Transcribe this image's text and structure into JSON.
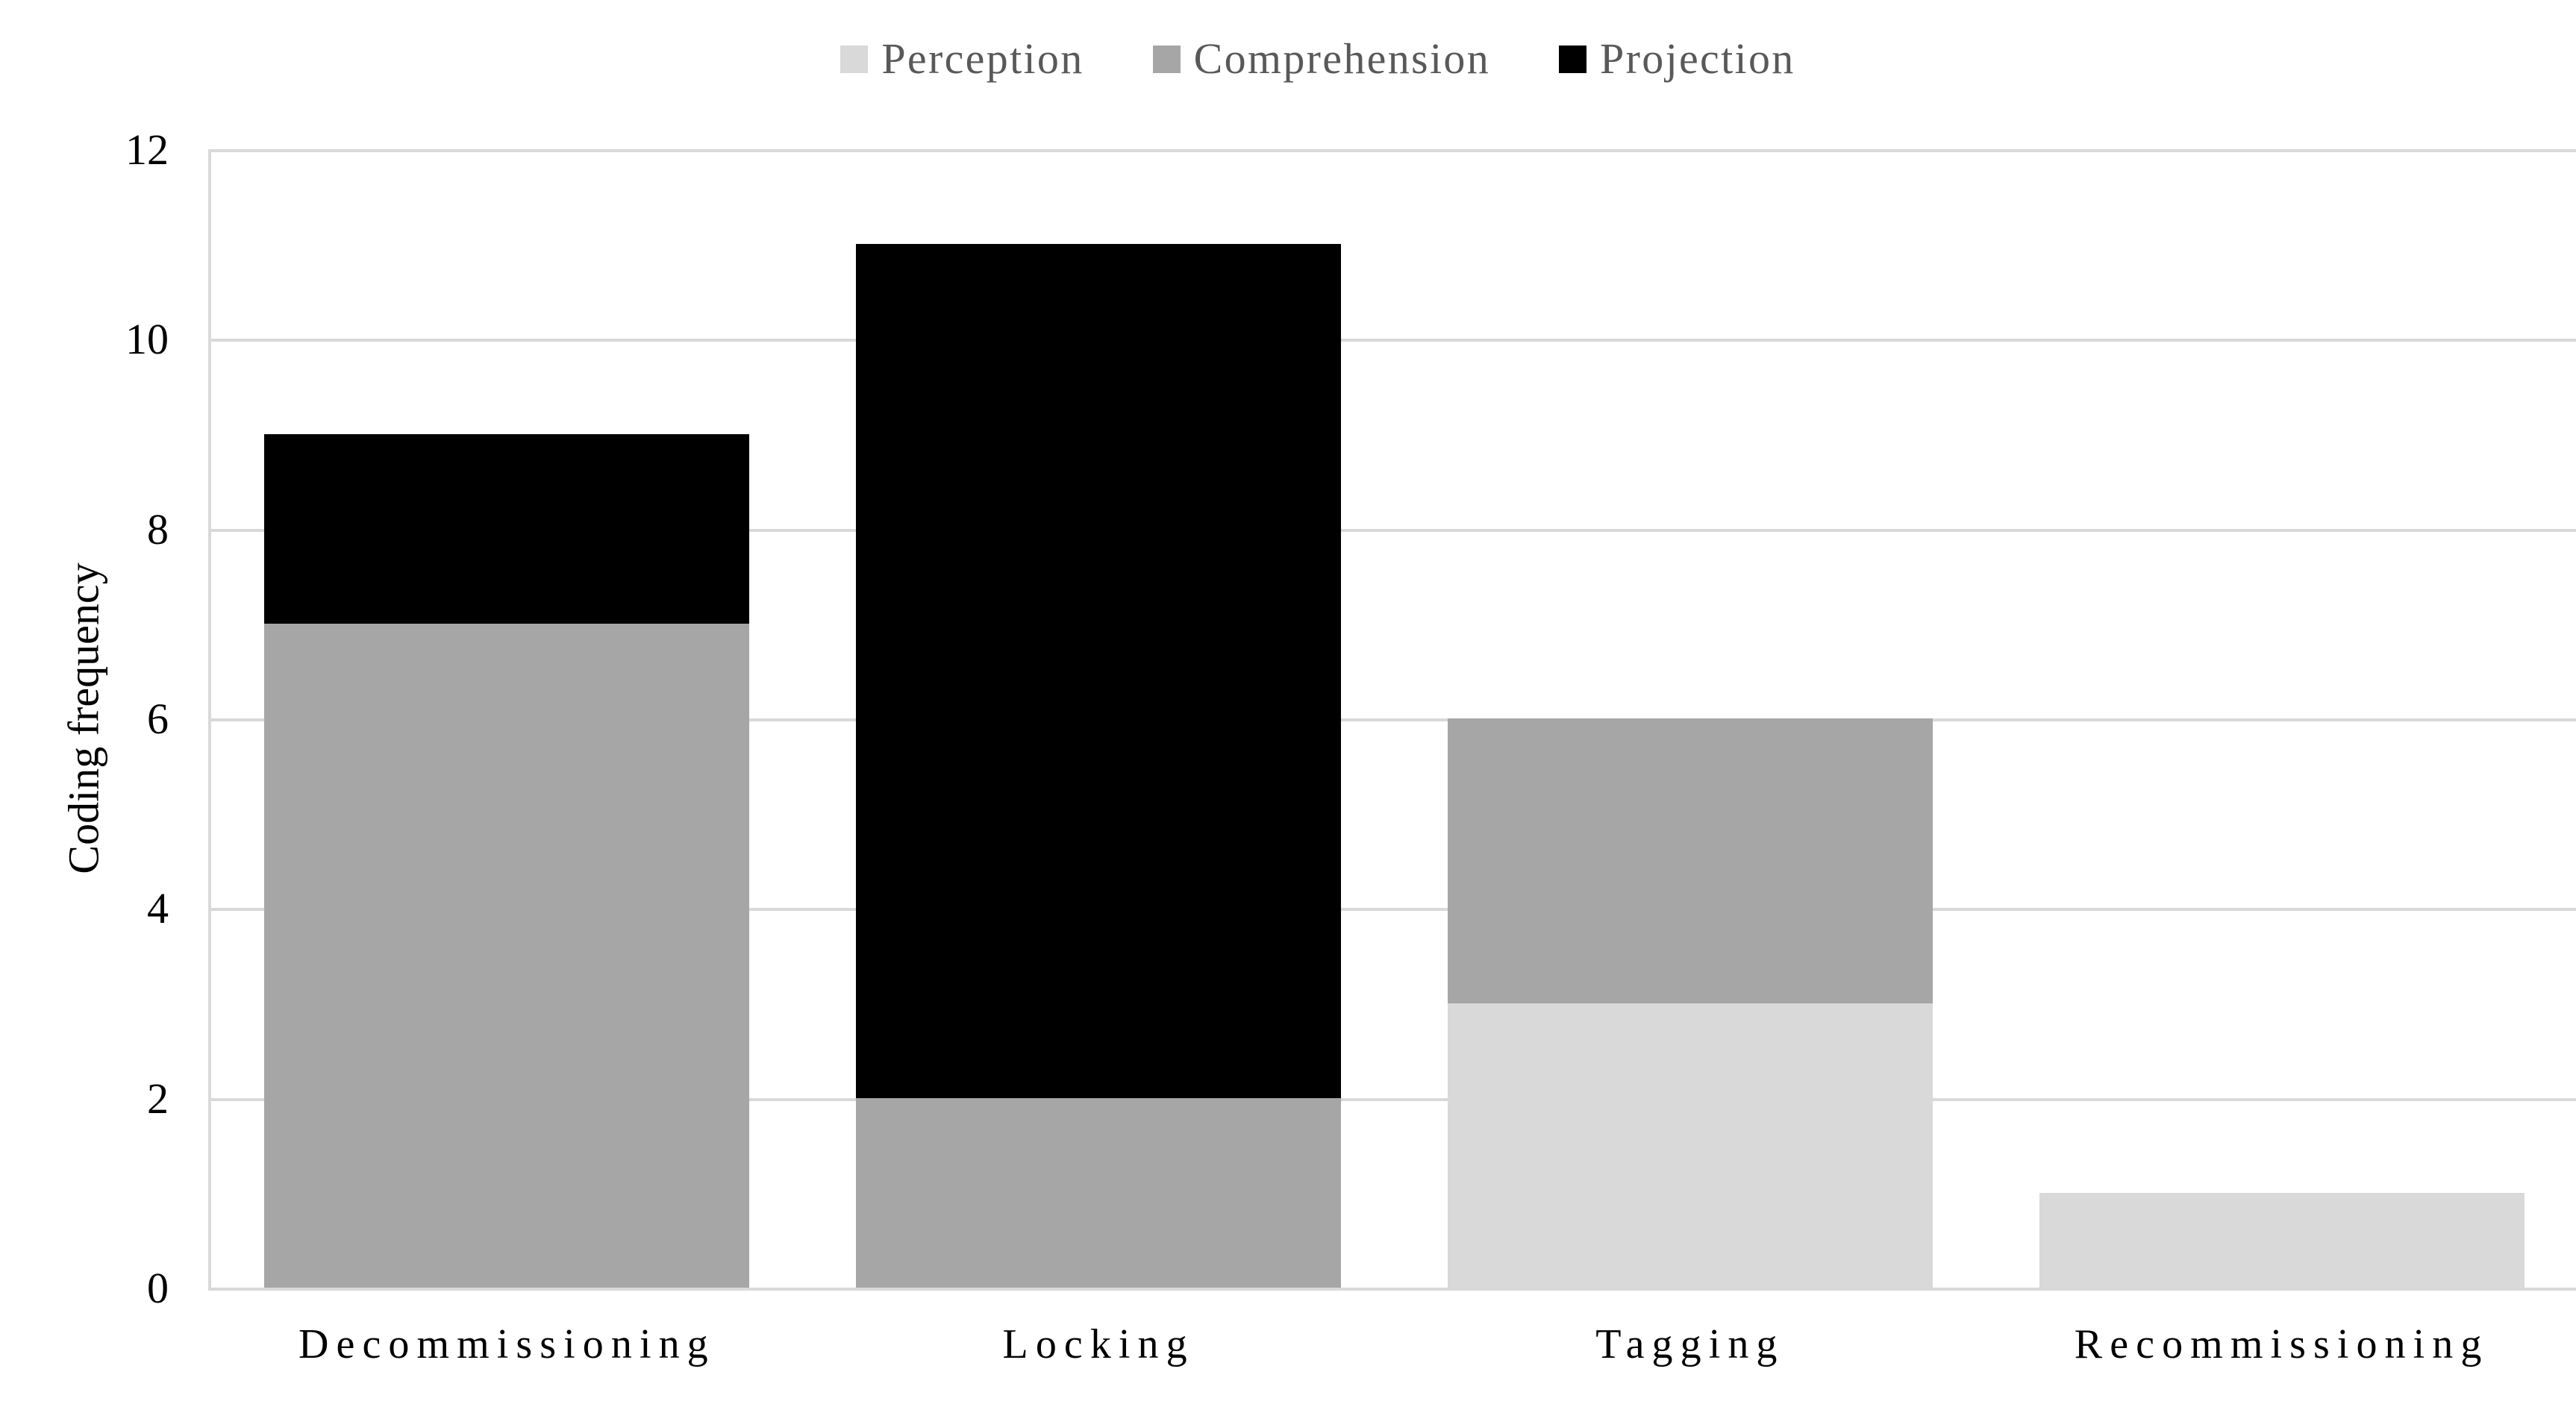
{
  "chart_data": {
    "type": "bar",
    "stacked": true,
    "title": "",
    "xlabel": "",
    "ylabel": "Coding frequency",
    "categories": [
      "Decommissioning",
      "Locking",
      "Tagging",
      "Recommissioning"
    ],
    "series": [
      {
        "name": "Perception",
        "color": "#d9d9d9",
        "values": [
          0,
          0,
          3,
          1
        ]
      },
      {
        "name": "Comprehension",
        "color": "#a6a6a6",
        "values": [
          7,
          2,
          3,
          0
        ]
      },
      {
        "name": "Projection",
        "color": "#000000",
        "values": [
          2,
          9,
          0,
          0
        ]
      }
    ],
    "totals": [
      9,
      11,
      6,
      1
    ],
    "ylim": [
      0,
      12
    ],
    "yticks": [
      0,
      2,
      4,
      6,
      8,
      10,
      12
    ],
    "grid": "horizontal",
    "legend_position": "top"
  },
  "style_colors": {
    "background": "#ffffff",
    "gridline": "#d9d9d9",
    "axis_line": "#d9d9d9",
    "legend_text": "#595959",
    "axis_text": "#000000"
  }
}
